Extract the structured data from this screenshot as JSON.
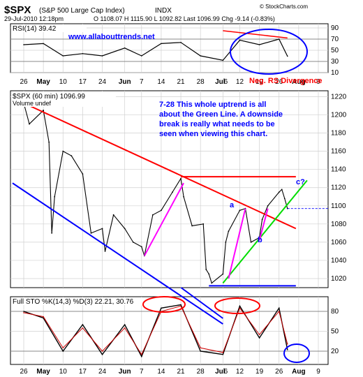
{
  "header": {
    "symbol": "$SPX",
    "name": "(S&P 500 Large Cap Index)",
    "exchange": "INDX",
    "datetime": "29-Jul-2010 12:18pm",
    "quote": "O 1108.07  H 1115.90  L 1092.82  Last 1096.99  Chg -9.14 (-0.83%)",
    "watermark": "© StockCharts.com"
  },
  "rsi_panel": {
    "label": "RSI(14) 39.42",
    "site_text": "www.allabouttrends.net",
    "annotation": "Neg. RS Divergence",
    "ticks": [
      "90",
      "70",
      "50",
      "30",
      "10"
    ]
  },
  "price_panel": {
    "label": "$SPX (60 min) 1096.99",
    "volume_label": "Volume undef",
    "note": "7-28 This whole uptrend is all about the Green Line. A downside break is really what needs to be seen when viewing this chart.",
    "label_a": "a",
    "label_b": "b",
    "label_c": "c?"
  },
  "sto_panel": {
    "label": "Full STO %K(14,3) %D(3) 22.21, 30.76",
    "ticks": [
      "80",
      "50",
      "20"
    ]
  },
  "x_axis_labels": [
    "26",
    "May",
    "10",
    "17",
    "24",
    "Jun",
    "7",
    "14",
    "21",
    "28",
    "Jul",
    "6",
    "12",
    "19",
    "26",
    "Aug",
    "9"
  ],
  "colors": {
    "price": "#000000",
    "downtrend": "#ff0000",
    "lower_channel": "#0000ff",
    "uptrend": "#00dd00",
    "swing": "#ff00ff",
    "annotation_text": "#0000ff",
    "divergence_text": "#ff0000",
    "oscillator_k": "#000000",
    "oscillator_d": "#cc0000"
  },
  "chart_data": [
    {
      "type": "line",
      "title": "RSI(14)",
      "ylim": [
        10,
        95
      ],
      "x": [
        "Apr 26",
        "May 3",
        "May 10",
        "May 17",
        "May 24",
        "Jun 1",
        "Jun 7",
        "Jun 14",
        "Jun 21",
        "Jun 28",
        "Jul 6",
        "Jul 12",
        "Jul 19",
        "Jul 26",
        "Jul 29"
      ],
      "series": [
        {
          "name": "RSI(14)",
          "values": [
            60,
            62,
            40,
            44,
            40,
            54,
            40,
            62,
            64,
            40,
            32,
            68,
            60,
            70,
            39.42
          ]
        }
      ]
    },
    {
      "type": "line",
      "title": "$SPX (60 min)",
      "ylim": [
        1010,
        1225
      ],
      "x": [
        "Apr 26",
        "Apr 28",
        "May 3",
        "May 5",
        "May 6",
        "May 7",
        "May 10",
        "May 13",
        "May 17",
        "May 20",
        "May 24",
        "May 25",
        "May 28",
        "Jun 1",
        "Jun 4",
        "Jun 7",
        "Jun 8",
        "Jun 11",
        "Jun 14",
        "Jun 18",
        "Jun 21",
        "Jun 22",
        "Jun 25",
        "Jun 29",
        "Jun 30",
        "Jul 1",
        "Jul 2",
        "Jul 6",
        "Jul 7",
        "Jul 8",
        "Jul 12",
        "Jul 14",
        "Jul 16",
        "Jul 19",
        "Jul 20",
        "Jul 22",
        "Jul 26",
        "Jul 27",
        "Jul 28",
        "Jul 29"
      ],
      "series": [
        {
          "name": "$SPX",
          "values": [
            1213,
            1190,
            1205,
            1170,
            1070,
            1110,
            1160,
            1155,
            1135,
            1070,
            1075,
            1050,
            1090,
            1075,
            1060,
            1055,
            1045,
            1090,
            1095,
            1115,
            1130,
            1110,
            1078,
            1080,
            1030,
            1025,
            1015,
            1025,
            1060,
            1072,
            1095,
            1097,
            1060,
            1065,
            1085,
            1100,
            1115,
            1118,
            1108,
            1097
          ]
        }
      ],
      "trendlines": [
        {
          "name": "downtrend",
          "from": [
            "Apr 26",
            1213
          ],
          "to": [
            "Aug 1",
            1075
          ]
        },
        {
          "name": "lower channel",
          "from": [
            "Apr 22",
            1125
          ],
          "to": [
            "Jul 6",
            970
          ]
        },
        {
          "name": "uptrend",
          "from": [
            "Jul 6",
            1015
          ],
          "to": [
            "Aug 5",
            1128
          ]
        },
        {
          "name": "resistance",
          "from": [
            "Jun 21",
            1132
          ],
          "to": [
            "Aug 1",
            1132
          ]
        },
        {
          "name": "support",
          "from": [
            "Jul 1",
            1012
          ],
          "to": [
            "Aug 1",
            1012
          ]
        }
      ]
    },
    {
      "type": "line",
      "title": "Full STO %K(14,3) %D(3)",
      "ylim": [
        0,
        100
      ],
      "x": [
        "Apr 26",
        "May 3",
        "May 10",
        "May 17",
        "May 24",
        "Jun 1",
        "Jun 7",
        "Jun 14",
        "Jun 21",
        "Jun 28",
        "Jul 6",
        "Jul 12",
        "Jul 19",
        "Jul 26",
        "Jul 29"
      ],
      "series": [
        {
          "name": "%K(14,3)",
          "values": [
            80,
            70,
            20,
            60,
            15,
            60,
            12,
            85,
            90,
            20,
            15,
            88,
            40,
            85,
            22.21
          ]
        },
        {
          "name": "%D(3)",
          "values": [
            78,
            72,
            25,
            55,
            20,
            55,
            15,
            80,
            88,
            25,
            18,
            85,
            45,
            80,
            30.76
          ]
        }
      ]
    }
  ]
}
